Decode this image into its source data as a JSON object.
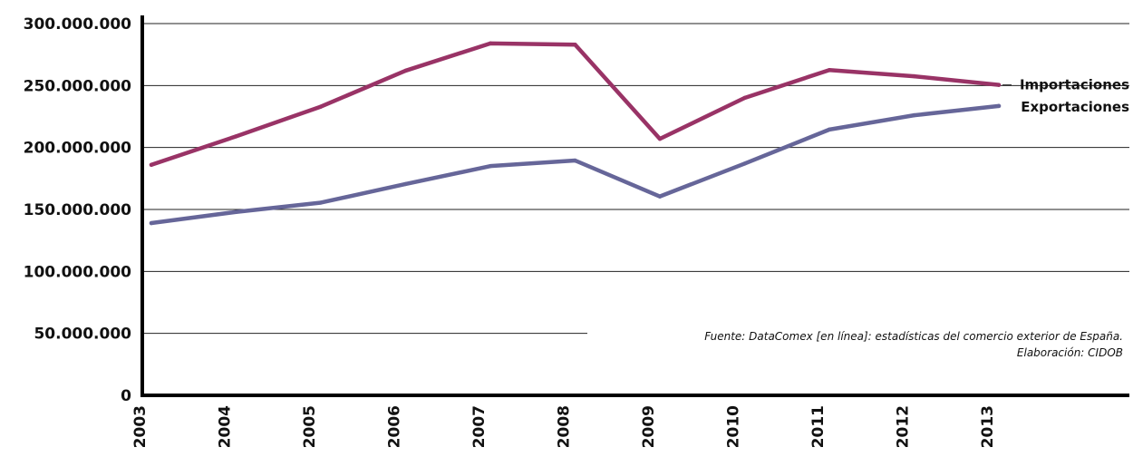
{
  "chart_data": {
    "type": "line",
    "categories": [
      "2003",
      "2004",
      "2005",
      "2006",
      "2007",
      "2008",
      "2009",
      "2010",
      "2011",
      "2012",
      "2013"
    ],
    "series": [
      {
        "name": "Importaciones",
        "color": "#993366",
        "values": [
          186000000,
          209000000,
          233000000,
          262000000,
          284000000,
          283000000,
          207000000,
          240000000,
          262500000,
          257500000,
          250500000
        ]
      },
      {
        "name": "Exportaciones",
        "color": "#666699",
        "values": [
          139000000,
          148000000,
          155500000,
          170500000,
          185000000,
          189500000,
          160500000,
          187000000,
          214500000,
          226000000,
          233500000
        ]
      }
    ],
    "yticks": [
      "0",
      "50.000.000",
      "100.000.000",
      "150.000.000",
      "200.000.000",
      "250.000.000",
      "300.000.000"
    ],
    "ylim": [
      0,
      300000000
    ],
    "grid": true
  },
  "source": {
    "line1": "Fuente: DataComex [en línea]: estadísticas del comercio exterior de España.",
    "line2": "Elaboración: CIDOB"
  }
}
